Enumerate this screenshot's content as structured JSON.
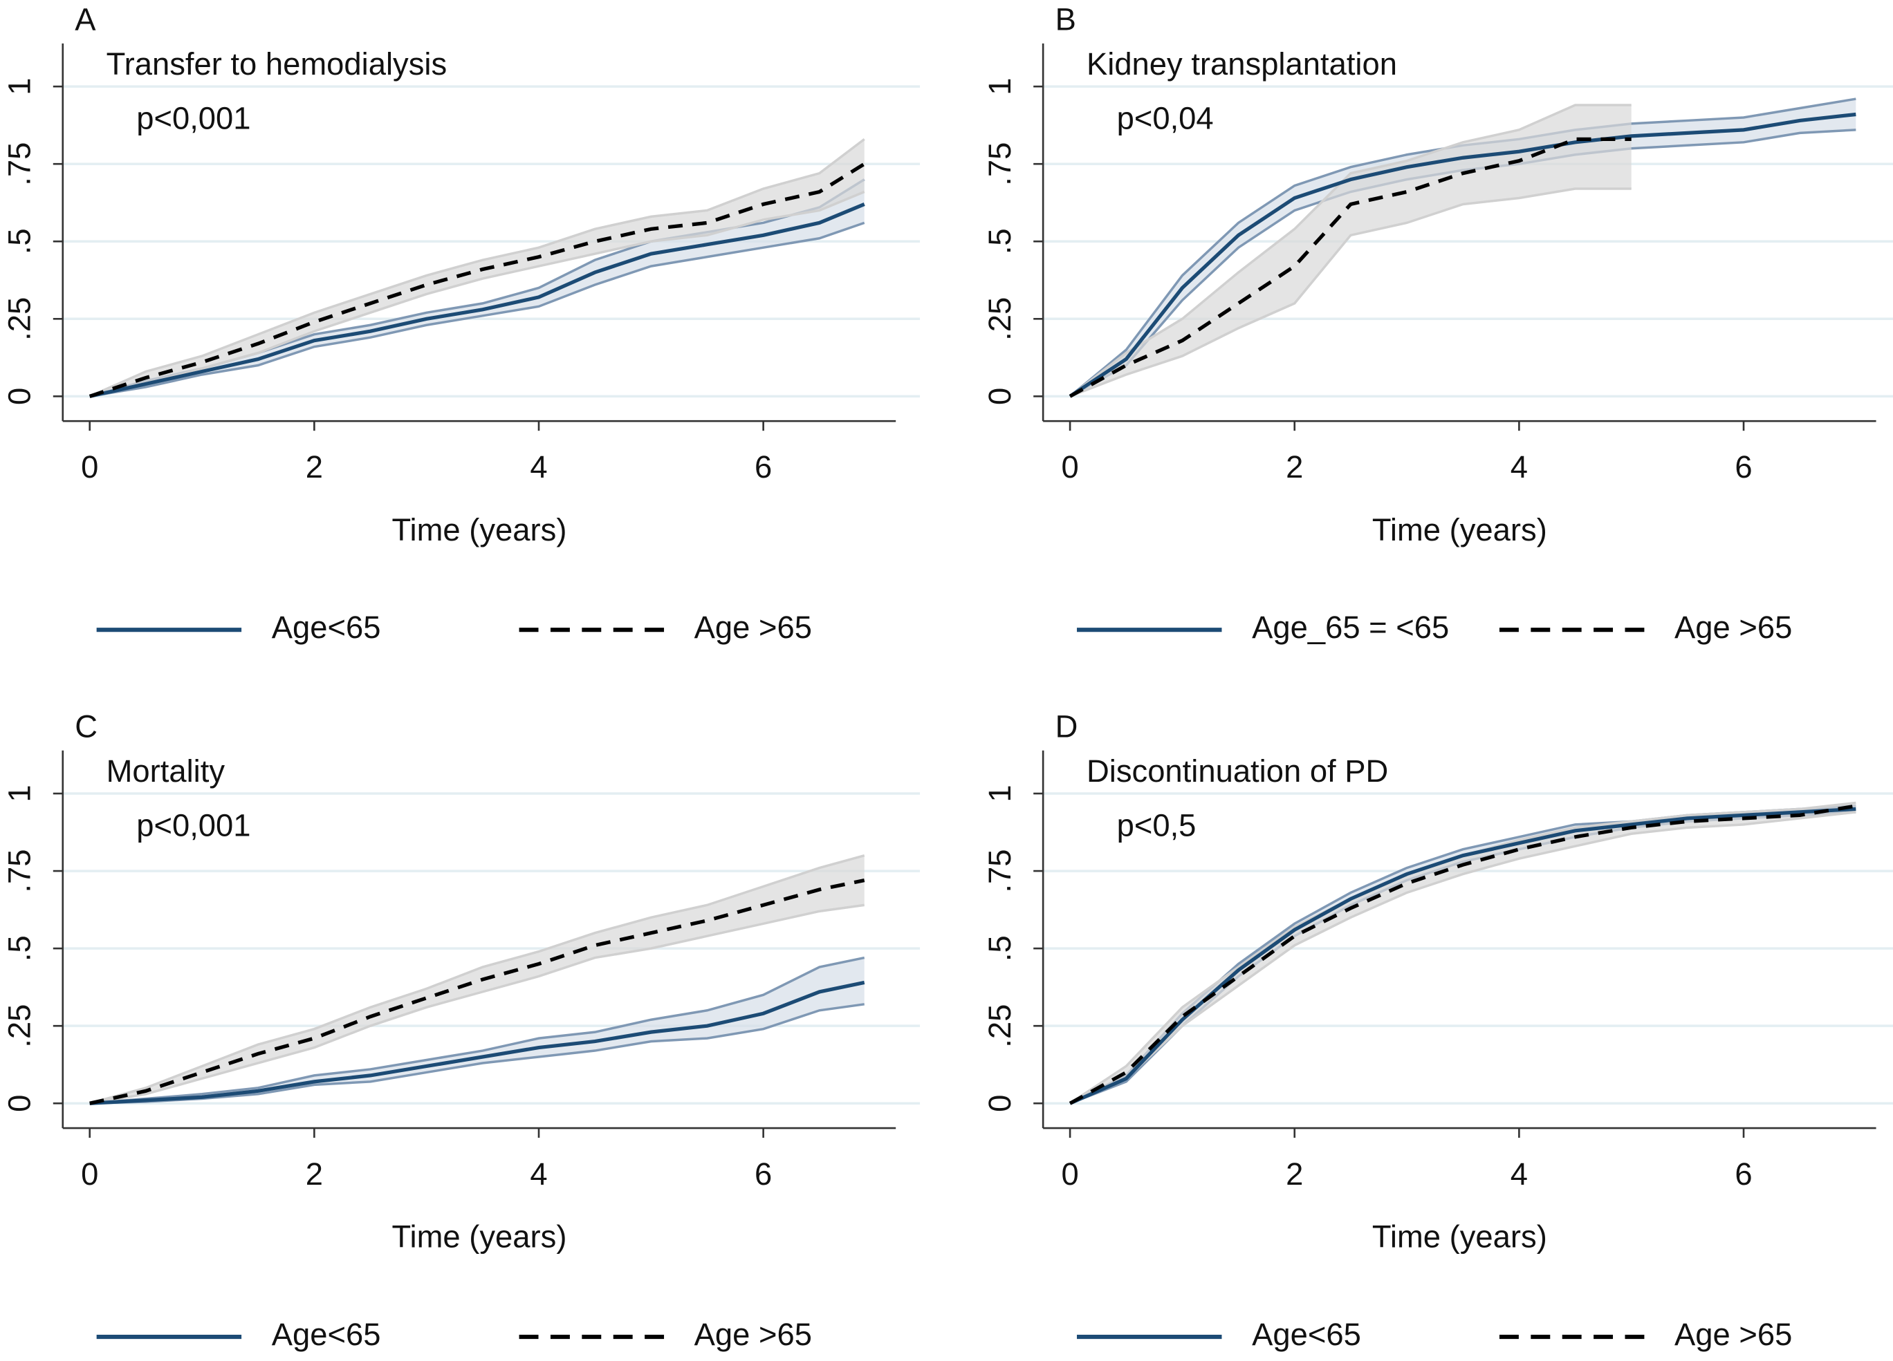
{
  "chart_data": [
    {
      "type": "line",
      "panel": "A",
      "title": "Transfer to hemodialysis",
      "annotation": "p<0,001",
      "x_label": "Time (years)",
      "x": [
        0,
        0.5,
        1,
        1.5,
        2,
        2.5,
        3,
        3.5,
        4,
        4.5,
        5,
        5.5,
        6,
        6.5,
        6.9
      ],
      "xlim": [
        -0.24,
        7.18
      ],
      "xticks": [
        0,
        2,
        4,
        6
      ],
      "ylim": [
        -0.08,
        1.1
      ],
      "yticks": [
        0,
        {
          "value": 0.25,
          "label": ".25"
        },
        {
          "value": 0.5,
          "label": ".5"
        },
        {
          "value": 0.75,
          "label": ".75"
        },
        1
      ],
      "grid": true,
      "series": [
        {
          "name": "Age<65",
          "color": "#1c4b75",
          "dashed": false,
          "values": [
            0,
            0.04,
            0.08,
            0.12,
            0.18,
            0.21,
            0.25,
            0.28,
            0.32,
            0.4,
            0.46,
            0.49,
            0.52,
            0.56,
            0.62
          ],
          "ci_lower": [
            0,
            0.03,
            0.07,
            0.1,
            0.16,
            0.19,
            0.23,
            0.26,
            0.29,
            0.36,
            0.42,
            0.45,
            0.48,
            0.51,
            0.56
          ],
          "ci_upper": [
            0,
            0.05,
            0.09,
            0.14,
            0.2,
            0.23,
            0.27,
            0.3,
            0.35,
            0.44,
            0.5,
            0.53,
            0.56,
            0.61,
            0.7
          ]
        },
        {
          "name": "Age >65",
          "color": "#000000",
          "dashed": true,
          "values": [
            0,
            0.06,
            0.11,
            0.17,
            0.24,
            0.3,
            0.36,
            0.41,
            0.45,
            0.5,
            0.54,
            0.56,
            0.62,
            0.66,
            0.75
          ],
          "ci_lower": [
            0,
            0.04,
            0.09,
            0.14,
            0.21,
            0.27,
            0.33,
            0.38,
            0.42,
            0.46,
            0.5,
            0.52,
            0.57,
            0.6,
            0.66
          ],
          "ci_upper": [
            0,
            0.08,
            0.13,
            0.2,
            0.27,
            0.33,
            0.39,
            0.44,
            0.48,
            0.54,
            0.58,
            0.6,
            0.67,
            0.72,
            0.83
          ]
        }
      ]
    },
    {
      "type": "line",
      "panel": "B",
      "title": "Kidney transplantation",
      "annotation": "p<0,04",
      "x_label": "Time (years)",
      "x": [
        0,
        0.5,
        1,
        1.5,
        2,
        2.5,
        3,
        3.5,
        4,
        4.5,
        5,
        5.5,
        6,
        6.5,
        7
      ],
      "xlim": [
        -0.24,
        7.18
      ],
      "xticks": [
        0,
        2,
        4,
        6
      ],
      "ylim": [
        -0.08,
        1.1
      ],
      "yticks": [
        0,
        {
          "value": 0.25,
          "label": ".25"
        },
        {
          "value": 0.5,
          "label": ".5"
        },
        {
          "value": 0.75,
          "label": ".75"
        },
        1
      ],
      "grid": true,
      "series": [
        {
          "name": "Age_65 = <65",
          "color": "#1c4b75",
          "dashed": false,
          "values": [
            0,
            0.12,
            0.35,
            0.52,
            0.64,
            0.7,
            0.74,
            0.77,
            0.79,
            0.82,
            0.84,
            0.85,
            0.86,
            0.89,
            0.91
          ],
          "ci_lower": [
            0,
            0.1,
            0.31,
            0.48,
            0.6,
            0.66,
            0.7,
            0.73,
            0.75,
            0.78,
            0.8,
            0.81,
            0.82,
            0.85,
            0.86
          ],
          "ci_upper": [
            0,
            0.15,
            0.39,
            0.56,
            0.68,
            0.74,
            0.78,
            0.81,
            0.83,
            0.86,
            0.88,
            0.89,
            0.9,
            0.93,
            0.96
          ]
        },
        {
          "name": "Age >65",
          "color": "#000000",
          "dashed": true,
          "values": [
            0,
            0.1,
            0.18,
            0.3,
            0.42,
            0.62,
            0.66,
            0.72,
            0.76,
            0.83,
            0.83,
            null,
            null,
            null,
            null
          ],
          "ci_lower": [
            0,
            0.07,
            0.13,
            0.22,
            0.3,
            0.52,
            0.56,
            0.62,
            0.64,
            0.67,
            0.67,
            null,
            null,
            null,
            null
          ],
          "ci_upper": [
            0,
            0.14,
            0.25,
            0.4,
            0.54,
            0.72,
            0.76,
            0.82,
            0.86,
            0.94,
            0.94,
            null,
            null,
            null,
            null
          ]
        }
      ]
    },
    {
      "type": "line",
      "panel": "C",
      "title": "Mortality",
      "annotation": "p<0,001",
      "x_label": "Time (years)",
      "x": [
        0,
        0.5,
        1,
        1.5,
        2,
        2.5,
        3,
        3.5,
        4,
        4.5,
        5,
        5.5,
        6,
        6.5,
        6.9
      ],
      "xlim": [
        -0.24,
        7.18
      ],
      "xticks": [
        0,
        2,
        4,
        6
      ],
      "ylim": [
        -0.08,
        1.1
      ],
      "yticks": [
        0,
        {
          "value": 0.25,
          "label": ".25"
        },
        {
          "value": 0.5,
          "label": ".5"
        },
        {
          "value": 0.75,
          "label": ".75"
        },
        1
      ],
      "grid": true,
      "series": [
        {
          "name": "Age<65",
          "color": "#1c4b75",
          "dashed": false,
          "values": [
            0,
            0.01,
            0.02,
            0.04,
            0.07,
            0.09,
            0.12,
            0.15,
            0.18,
            0.2,
            0.23,
            0.25,
            0.29,
            0.36,
            0.39
          ],
          "ci_lower": [
            0,
            0.005,
            0.015,
            0.03,
            0.06,
            0.07,
            0.1,
            0.13,
            0.15,
            0.17,
            0.2,
            0.21,
            0.24,
            0.3,
            0.32
          ],
          "ci_upper": [
            0,
            0.015,
            0.03,
            0.05,
            0.09,
            0.11,
            0.14,
            0.17,
            0.21,
            0.23,
            0.27,
            0.3,
            0.35,
            0.44,
            0.47
          ]
        },
        {
          "name": "Age >65",
          "color": "#000000",
          "dashed": true,
          "values": [
            0,
            0.04,
            0.1,
            0.16,
            0.21,
            0.28,
            0.34,
            0.4,
            0.45,
            0.51,
            0.55,
            0.59,
            0.64,
            0.69,
            0.72
          ],
          "ci_lower": [
            0,
            0.03,
            0.08,
            0.13,
            0.18,
            0.25,
            0.31,
            0.36,
            0.41,
            0.47,
            0.5,
            0.54,
            0.58,
            0.62,
            0.64
          ],
          "ci_upper": [
            0,
            0.05,
            0.12,
            0.19,
            0.24,
            0.31,
            0.37,
            0.44,
            0.49,
            0.55,
            0.6,
            0.64,
            0.7,
            0.76,
            0.8
          ]
        }
      ]
    },
    {
      "type": "line",
      "panel": "D",
      "title": "Discontinuation of PD",
      "annotation": "p<0,5",
      "x_label": "Time (years)",
      "x": [
        0,
        0.5,
        1,
        1.5,
        2,
        2.5,
        3,
        3.5,
        4,
        4.5,
        5,
        5.5,
        6,
        6.5,
        7
      ],
      "xlim": [
        -0.24,
        7.18
      ],
      "xticks": [
        0,
        2,
        4,
        6
      ],
      "ylim": [
        -0.08,
        1.1
      ],
      "yticks": [
        0,
        {
          "value": 0.25,
          "label": ".25"
        },
        {
          "value": 0.5,
          "label": ".5"
        },
        {
          "value": 0.75,
          "label": ".75"
        },
        1
      ],
      "grid": true,
      "series": [
        {
          "name": "Age<65",
          "color": "#1c4b75",
          "dashed": false,
          "values": [
            0,
            0.08,
            0.27,
            0.43,
            0.56,
            0.66,
            0.74,
            0.8,
            0.84,
            0.88,
            0.9,
            0.92,
            0.93,
            0.94,
            0.95
          ],
          "ci_lower": [
            0,
            0.07,
            0.25,
            0.41,
            0.54,
            0.64,
            0.72,
            0.78,
            0.82,
            0.86,
            0.89,
            0.91,
            0.92,
            0.93,
            0.94
          ],
          "ci_upper": [
            0,
            0.09,
            0.29,
            0.45,
            0.58,
            0.68,
            0.76,
            0.82,
            0.86,
            0.9,
            0.91,
            0.93,
            0.94,
            0.95,
            0.96
          ]
        },
        {
          "name": "Age >65",
          "color": "#000000",
          "dashed": true,
          "values": [
            0,
            0.1,
            0.28,
            0.41,
            0.54,
            0.63,
            0.71,
            0.77,
            0.82,
            0.86,
            0.89,
            0.91,
            0.92,
            0.93,
            0.96
          ],
          "ci_lower": [
            0,
            0.08,
            0.25,
            0.38,
            0.51,
            0.6,
            0.68,
            0.74,
            0.79,
            0.83,
            0.87,
            0.89,
            0.9,
            0.92,
            0.94
          ],
          "ci_upper": [
            0,
            0.12,
            0.31,
            0.44,
            0.57,
            0.66,
            0.74,
            0.8,
            0.85,
            0.89,
            0.91,
            0.93,
            0.94,
            0.95,
            0.97
          ]
        }
      ]
    }
  ]
}
